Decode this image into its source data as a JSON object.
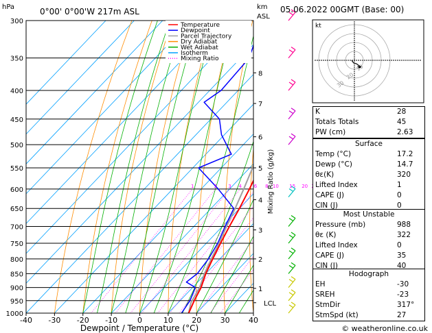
{
  "header": {
    "hpa_label": "hPa",
    "location": "0°00' 0°00'W 217m ASL",
    "km_label": "km",
    "asl_label": "ASL",
    "datetime": "05.06.2022 00GMT (Base: 00)"
  },
  "legend": {
    "items": [
      {
        "label": "Temperature",
        "color": "#ff0000",
        "dash": ""
      },
      {
        "label": "Dewpoint",
        "color": "#0000ff",
        "dash": ""
      },
      {
        "label": "Parcel Trajectory",
        "color": "#a0a0a0",
        "dash": ""
      },
      {
        "label": "Dry Adiabat",
        "color": "#ff8c00",
        "dash": ""
      },
      {
        "label": "Wet Adiabat",
        "color": "#00b000",
        "dash": ""
      },
      {
        "label": "Isotherm",
        "color": "#00a0ff",
        "dash": ""
      },
      {
        "label": "Mixing Ratio",
        "color": "#ff00ff",
        "dash": "1,2"
      }
    ]
  },
  "colors": {
    "temperature": "#ff0000",
    "dewpoint": "#0000ff",
    "parcel": "#a0a0a0",
    "dry_adiabat": "#ff8c00",
    "wet_adiabat": "#00b000",
    "isotherm": "#00a0ff",
    "mixing_ratio": "#ff00ff",
    "wind_high": "#ff0090",
    "wind_mid": "#cc00cc",
    "wind_cyan": "#00c0c0",
    "wind_low": "#00b000",
    "wind_surface": "#c8c800"
  },
  "chart_data": {
    "type": "line",
    "title": "",
    "xlabel": "Dewpoint / Temperature (°C)",
    "ylabel": "Mixing Ratio (g/kg)",
    "y_left_title": "hPa",
    "y_right_title": "km ASL",
    "xlim": [
      -40,
      40
    ],
    "ylim_hpa": [
      1000,
      300
    ],
    "x_ticks": [
      -40,
      -30,
      -20,
      -10,
      0,
      10,
      20,
      30,
      40
    ],
    "pressure_levels": [
      300,
      350,
      400,
      450,
      500,
      550,
      600,
      650,
      700,
      750,
      800,
      850,
      900,
      950,
      1000
    ],
    "height_ticks": [
      {
        "label": "8",
        "p": 372
      },
      {
        "label": "7",
        "p": 422
      },
      {
        "label": "6",
        "p": 484
      },
      {
        "label": "5",
        "p": 550
      },
      {
        "label": "4",
        "p": 627
      },
      {
        "label": "3",
        "p": 710
      },
      {
        "label": "2",
        "p": 800
      },
      {
        "label": "1",
        "p": 903
      },
      {
        "label": "LCL",
        "p": 958
      }
    ],
    "mixing_ratio_labels": [
      1,
      2,
      3,
      4,
      6,
      8,
      10,
      15,
      20,
      25
    ],
    "mixing_ratio_label_p": 600,
    "series": [
      {
        "name": "Temperature",
        "color": "#ff0000",
        "points": [
          [
            17.2,
            1000
          ],
          [
            15,
            950
          ],
          [
            13,
            900
          ],
          [
            10,
            850
          ],
          [
            7.5,
            800
          ],
          [
            5,
            750
          ],
          [
            2.5,
            700
          ],
          [
            0,
            650
          ],
          [
            -3,
            600
          ],
          [
            -6.5,
            550
          ],
          [
            -10.5,
            500
          ],
          [
            -15,
            450
          ],
          [
            -19,
            400
          ],
          [
            -25.5,
            350
          ],
          [
            -33,
            300
          ]
        ]
      },
      {
        "name": "Dewpoint",
        "color": "#0000ff",
        "points": [
          [
            14.7,
            1000
          ],
          [
            13.5,
            950
          ],
          [
            11,
            900
          ],
          [
            6,
            880
          ],
          [
            7,
            850
          ],
          [
            6,
            800
          ],
          [
            4,
            750
          ],
          [
            1,
            700
          ],
          [
            -2,
            650
          ],
          [
            -14,
            600
          ],
          [
            -28,
            550
          ],
          [
            -21,
            520
          ],
          [
            -31,
            480
          ],
          [
            -37,
            450
          ],
          [
            -48,
            420
          ],
          [
            -46,
            400
          ],
          [
            -47,
            350
          ],
          [
            -55,
            300
          ]
        ]
      },
      {
        "name": "Parcel Trajectory",
        "color": "#a0a0a0",
        "points": [
          [
            17.2,
            1000
          ],
          [
            14.5,
            958
          ],
          [
            12.5,
            900
          ],
          [
            9.5,
            850
          ],
          [
            7,
            800
          ],
          [
            4.5,
            750
          ],
          [
            1.5,
            700
          ],
          [
            -1.5,
            650
          ],
          [
            -5,
            600
          ],
          [
            -9,
            550
          ],
          [
            -13,
            500
          ],
          [
            -18,
            450
          ],
          [
            -24,
            400
          ],
          [
            -31,
            350
          ],
          [
            -40,
            300
          ]
        ]
      }
    ]
  },
  "hodograph": {
    "label": "kt",
    "ring_labels": [
      "10",
      "20",
      "30"
    ]
  },
  "wind_barbs": [
    {
      "p": 300,
      "color": "#ff0090"
    },
    {
      "p": 350,
      "color": "#ff0090"
    },
    {
      "p": 400,
      "color": "#ff0090"
    },
    {
      "p": 450,
      "color": "#cc00cc"
    },
    {
      "p": 500,
      "color": "#cc00cc"
    },
    {
      "p": 620,
      "color": "#00c0c0"
    },
    {
      "p": 700,
      "color": "#00b000"
    },
    {
      "p": 750,
      "color": "#00b000"
    },
    {
      "p": 800,
      "color": "#00b000"
    },
    {
      "p": 850,
      "color": "#00b000"
    },
    {
      "p": 900,
      "color": "#c8c800"
    },
    {
      "p": 950,
      "color": "#c8c800"
    },
    {
      "p": 1000,
      "color": "#c8c800"
    }
  ],
  "indices": {
    "rows": [
      {
        "label": "K",
        "value": "28"
      },
      {
        "label": "Totals Totals",
        "value": "45"
      },
      {
        "label": "PW (cm)",
        "value": "2.63"
      }
    ]
  },
  "surface": {
    "header": "Surface",
    "rows": [
      {
        "label": "Temp (°C)",
        "value": "17.2"
      },
      {
        "label": "Dewp (°C)",
        "value": "14.7"
      },
      {
        "label": "θε(K)",
        "value": "320"
      },
      {
        "label": "Lifted Index",
        "value": "1"
      },
      {
        "label": "CAPE (J)",
        "value": "0"
      },
      {
        "label": "CIN (J)",
        "value": "0"
      }
    ]
  },
  "most_unstable": {
    "header": "Most Unstable",
    "rows": [
      {
        "label": "Pressure (mb)",
        "value": "988"
      },
      {
        "label": "θε (K)",
        "value": "322"
      },
      {
        "label": "Lifted Index",
        "value": "0"
      },
      {
        "label": "CAPE (J)",
        "value": "35"
      },
      {
        "label": "CIN (J)",
        "value": "40"
      }
    ]
  },
  "hodograph_table": {
    "header": "Hodograph",
    "rows": [
      {
        "label": "EH",
        "value": "-30"
      },
      {
        "label": "SREH",
        "value": "-23"
      },
      {
        "label": "StmDir",
        "value": "317°"
      },
      {
        "label": "StmSpd (kt)",
        "value": "27"
      }
    ]
  },
  "footer": {
    "copyright": "© weatheronline.co.uk"
  }
}
